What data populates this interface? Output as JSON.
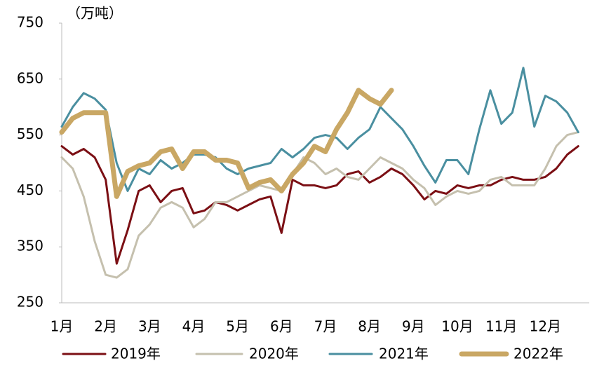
{
  "chart_data": {
    "type": "line",
    "y_label": "（万吨）",
    "categories": [
      "1月",
      null,
      null,
      null,
      "2月",
      null,
      null,
      null,
      "3月",
      null,
      null,
      null,
      "4月",
      null,
      null,
      null,
      "5月",
      null,
      null,
      null,
      "6月",
      null,
      null,
      null,
      "7月",
      null,
      null,
      null,
      "8月",
      null,
      null,
      null,
      "9月",
      null,
      null,
      null,
      "10月",
      null,
      null,
      null,
      "11月",
      null,
      null,
      null,
      "12月",
      null,
      null,
      null
    ],
    "ylim": [
      250,
      750
    ],
    "yticks": [
      250,
      350,
      450,
      550,
      650,
      750
    ],
    "legend": "bottom",
    "series": [
      {
        "name": "2019年",
        "color": "#7b0f14",
        "values": [
          530,
          515,
          525,
          510,
          470,
          320,
          380,
          450,
          460,
          430,
          450,
          455,
          410,
          415,
          430,
          425,
          415,
          425,
          435,
          440,
          375,
          470,
          460,
          460,
          455,
          460,
          480,
          485,
          465,
          475,
          490,
          480,
          460,
          435,
          450,
          445,
          460,
          455,
          460,
          460,
          470,
          475,
          470,
          470,
          475,
          490,
          515,
          530
        ]
      },
      {
        "name": "2020年",
        "color": "#c5c0ae",
        "values": [
          510,
          490,
          440,
          360,
          300,
          295,
          310,
          370,
          390,
          420,
          430,
          420,
          385,
          400,
          430,
          430,
          440,
          450,
          460,
          455,
          450,
          480,
          510,
          500,
          480,
          490,
          475,
          470,
          490,
          510,
          500,
          490,
          470,
          455,
          425,
          440,
          450,
          445,
          450,
          470,
          475,
          460,
          460,
          460,
          490,
          530,
          550,
          555
        ]
      },
      {
        "name": "2021年",
        "color": "#4a8fa0",
        "values": [
          565,
          600,
          625,
          615,
          595,
          500,
          450,
          490,
          480,
          505,
          490,
          500,
          515,
          515,
          510,
          490,
          480,
          490,
          495,
          500,
          525,
          510,
          525,
          545,
          550,
          545,
          525,
          545,
          560,
          600,
          580,
          560,
          530,
          495,
          465,
          505,
          505,
          480,
          560,
          630,
          570,
          590,
          670,
          565,
          620,
          610,
          590,
          555
        ]
      },
      {
        "name": "2022年",
        "color": "#c9a764",
        "values": [
          555,
          580,
          590,
          590,
          590,
          440,
          485,
          495,
          500,
          520,
          525,
          490,
          520,
          520,
          505,
          505,
          500,
          455,
          465,
          470,
          450,
          480,
          500,
          530,
          520,
          560,
          590,
          630,
          615,
          605,
          630,
          null,
          null,
          null,
          null,
          null,
          null,
          null,
          null,
          null,
          null,
          null,
          null,
          null,
          null,
          null,
          null,
          null
        ]
      }
    ]
  }
}
